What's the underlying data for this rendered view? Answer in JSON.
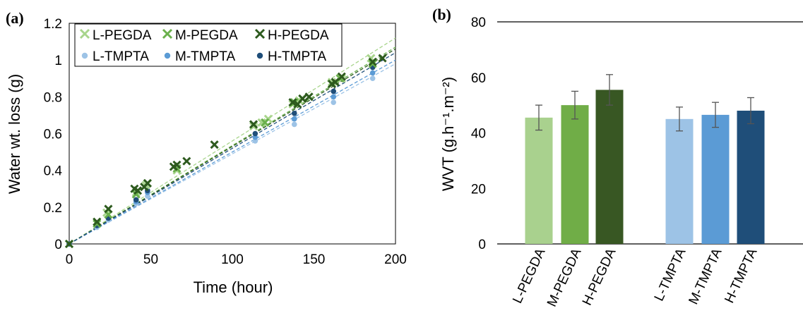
{
  "chart_data": [
    {
      "panel_label": "(a)",
      "type": "scatter",
      "xlabel": "Time (hour)",
      "ylabel": "Water wt. loss (g)",
      "xlim": [
        0,
        200
      ],
      "ylim": [
        0,
        1.2
      ],
      "x_ticks": [
        "0",
        "50",
        "100",
        "150",
        "200"
      ],
      "y_ticks": [
        "0",
        "0.2",
        "0.4",
        "0.6",
        "0.8",
        "1",
        "1.2"
      ],
      "legend_position": "top-left",
      "trendlines": "linear, dashed",
      "series": [
        {
          "name": "L-PEGDA",
          "marker": "x",
          "color": "#a8d58c",
          "points": [
            [
              0,
              0
            ],
            [
              17,
              0.12
            ],
            [
              23,
              0.17
            ],
            [
              41,
              0.28
            ],
            [
              47,
              0.32
            ],
            [
              66,
              0.4
            ],
            [
              113,
              0.64
            ],
            [
              118,
              0.66
            ],
            [
              122,
              0.68
            ],
            [
              137,
              0.76
            ],
            [
              141,
              0.78
            ],
            [
              161,
              0.88
            ],
            [
              167,
              0.9
            ],
            [
              185,
              1.01
            ]
          ]
        },
        {
          "name": "M-PEGDA",
          "marker": "x",
          "color": "#6ab04c",
          "points": [
            [
              0,
              0
            ],
            [
              17,
              0.11
            ],
            [
              24,
              0.16
            ],
            [
              41,
              0.27
            ],
            [
              48,
              0.33
            ],
            [
              66,
              0.41
            ],
            [
              113,
              0.65
            ],
            [
              120,
              0.66
            ],
            [
              138,
              0.77
            ],
            [
              143,
              0.79
            ],
            [
              161,
              0.87
            ],
            [
              166,
              0.9
            ],
            [
              186,
              0.98
            ]
          ]
        },
        {
          "name": "H-PEGDA",
          "marker": "x",
          "color": "#2d5a1e",
          "points": [
            [
              0,
              0
            ],
            [
              17,
              0.12
            ],
            [
              24,
              0.19
            ],
            [
              40,
              0.3
            ],
            [
              42,
              0.29
            ],
            [
              46,
              0.31
            ],
            [
              48,
              0.33
            ],
            [
              64,
              0.42
            ],
            [
              66,
              0.43
            ],
            [
              72,
              0.45
            ],
            [
              89,
              0.54
            ],
            [
              113,
              0.65
            ],
            [
              137,
              0.77
            ],
            [
              140,
              0.76
            ],
            [
              143,
              0.79
            ],
            [
              147,
              0.8
            ],
            [
              161,
              0.87
            ],
            [
              163,
              0.88
            ],
            [
              167,
              0.91
            ],
            [
              186,
              0.99
            ],
            [
              192,
              1.01
            ]
          ]
        },
        {
          "name": "L-TMPTA",
          "marker": "dot",
          "color": "#9dc3e6",
          "points": [
            [
              0,
              0
            ],
            [
              17,
              0.09
            ],
            [
              24,
              0.13
            ],
            [
              41,
              0.22
            ],
            [
              48,
              0.26
            ],
            [
              114,
              0.56
            ],
            [
              138,
              0.65
            ],
            [
              162,
              0.77
            ],
            [
              186,
              0.9
            ]
          ]
        },
        {
          "name": "M-TMPTA",
          "marker": "dot",
          "color": "#5b9bd5",
          "points": [
            [
              0,
              0
            ],
            [
              17,
              0.1
            ],
            [
              24,
              0.14
            ],
            [
              41,
              0.23
            ],
            [
              48,
              0.28
            ],
            [
              114,
              0.58
            ],
            [
              138,
              0.68
            ],
            [
              162,
              0.8
            ],
            [
              186,
              0.93
            ]
          ]
        },
        {
          "name": "H-TMPTA",
          "marker": "dot",
          "color": "#1f4e79",
          "points": [
            [
              0,
              0
            ],
            [
              17,
              0.1
            ],
            [
              24,
              0.14
            ],
            [
              41,
              0.24
            ],
            [
              48,
              0.29
            ],
            [
              114,
              0.6
            ],
            [
              138,
              0.71
            ],
            [
              162,
              0.83
            ],
            [
              186,
              0.96
            ]
          ]
        }
      ],
      "fit_slopes": {
        "L-PEGDA": 0.0056,
        "M-PEGDA": 0.00535,
        "H-PEGDA": 0.0053,
        "L-TMPTA": 0.0049,
        "M-TMPTA": 0.005,
        "H-TMPTA": 0.0052
      }
    },
    {
      "panel_label": "(b)",
      "type": "bar",
      "ylabel": "WVT (g.h⁻¹.m⁻²)",
      "ylim": [
        0,
        80
      ],
      "y_ticks": [
        "0",
        "20",
        "40",
        "60",
        "80"
      ],
      "categories": [
        "L-PEGDA",
        "M-PEGDA",
        "H-PEGDA",
        "L-TMPTA",
        "M-TMPTA",
        "H-TMPTA"
      ],
      "values": [
        45.5,
        50.0,
        55.5,
        45.0,
        46.5,
        48.0
      ],
      "errors": [
        4.5,
        5.0,
        5.5,
        4.3,
        4.5,
        4.7
      ],
      "colors": [
        "#a9d18e",
        "#70ad47",
        "#385723",
        "#9dc3e6",
        "#5b9bd5",
        "#1f4e79"
      ]
    }
  ]
}
